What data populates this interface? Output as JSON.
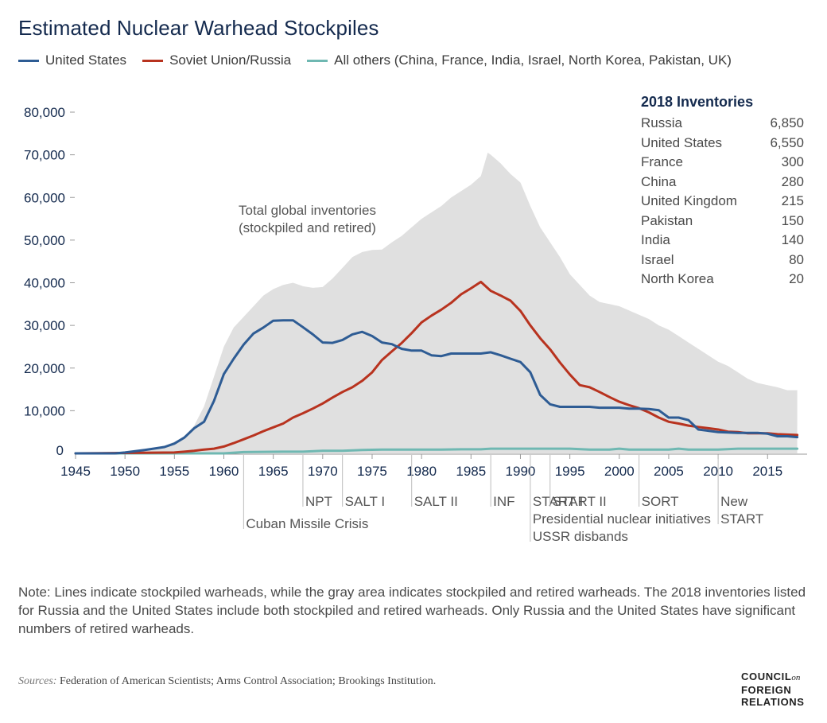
{
  "title": "Estimated Nuclear Warhead Stockpiles",
  "legend": [
    {
      "label": "United States",
      "color": "#2e5c94"
    },
    {
      "label": "Soviet Union/Russia",
      "color": "#b8331f"
    },
    {
      "label": "All others (China, France, India, Israel, North Korea, Pakistan, UK)",
      "color": "#6fb8b2"
    }
  ],
  "area_label_line1": "Total global inventories",
  "area_label_line2": "(stockpiled and retired)",
  "inventories": {
    "title": "2018 Inventories",
    "rows": [
      {
        "country": "Russia",
        "value": "6,850"
      },
      {
        "country": "United States",
        "value": "6,550"
      },
      {
        "country": "France",
        "value": "300"
      },
      {
        "country": "China",
        "value": "280"
      },
      {
        "country": "United Kingdom",
        "value": "215"
      },
      {
        "country": "Pakistan",
        "value": "150"
      },
      {
        "country": "India",
        "value": "140"
      },
      {
        "country": "Israel",
        "value": "80"
      },
      {
        "country": "North Korea",
        "value": "20"
      }
    ]
  },
  "note": "Note: Lines indicate stockpiled warheads, while the gray area indicates stockpiled and retired warheads. The 2018 inventories listed for Russia and the United States include both stockpiled and retired warheads. Only Russia and the United States have significant numbers of retired warheads.",
  "sources_label": "Sources:",
  "sources_text": "Federation of American Scientists; Arms Control Association; Brookings Institution.",
  "logo": {
    "line1": "COUNCIL",
    "on": "on",
    "line2": "FOREIGN",
    "line3": "RELATIONS"
  },
  "chart_data": {
    "type": "line",
    "title": "Estimated Nuclear Warhead Stockpiles",
    "xlim": [
      1945,
      2019
    ],
    "ylim": [
      0,
      80000
    ],
    "x_ticks": [
      1945,
      1950,
      1955,
      1960,
      1965,
      1970,
      1975,
      1980,
      1985,
      1990,
      1995,
      2000,
      2005,
      2010,
      2015
    ],
    "y_ticks": [
      0,
      10000,
      20000,
      30000,
      40000,
      50000,
      60000,
      70000,
      80000
    ],
    "y_tick_labels": [
      "0",
      "10,000",
      "20,000",
      "30,000",
      "40,000",
      "50,000",
      "60,000",
      "70,000",
      "80,000"
    ],
    "grid": false,
    "legend_position": "top",
    "area": {
      "name": "Total global inventories (stockpiled and retired)",
      "color": "#e0e0e0",
      "points": [
        [
          1945,
          0
        ],
        [
          1950,
          300
        ],
        [
          1952,
          900
        ],
        [
          1954,
          1800
        ],
        [
          1955,
          2700
        ],
        [
          1956,
          4000
        ],
        [
          1957,
          6500
        ],
        [
          1958,
          11000
        ],
        [
          1959,
          18000
        ],
        [
          1960,
          25000
        ],
        [
          1961,
          29500
        ],
        [
          1962,
          32000
        ],
        [
          1963,
          34500
        ],
        [
          1964,
          37000
        ],
        [
          1965,
          38500
        ],
        [
          1966,
          39500
        ],
        [
          1967,
          40000
        ],
        [
          1968,
          39200
        ],
        [
          1969,
          38800
        ],
        [
          1970,
          39000
        ],
        [
          1971,
          41000
        ],
        [
          1972,
          43500
        ],
        [
          1973,
          46000
        ],
        [
          1974,
          47200
        ],
        [
          1975,
          47700
        ],
        [
          1976,
          47800
        ],
        [
          1977,
          49500
        ],
        [
          1978,
          51000
        ],
        [
          1979,
          53000
        ],
        [
          1980,
          55000
        ],
        [
          1981,
          56500
        ],
        [
          1982,
          58000
        ],
        [
          1983,
          60000
        ],
        [
          1984,
          61500
        ],
        [
          1985,
          63000
        ],
        [
          1986,
          65000
        ],
        [
          1986.7,
          70500
        ],
        [
          1987,
          70000
        ],
        [
          1988,
          68000
        ],
        [
          1989,
          65500
        ],
        [
          1990,
          63500
        ],
        [
          1991,
          58000
        ],
        [
          1992,
          53000
        ],
        [
          1993,
          49500
        ],
        [
          1994,
          46000
        ],
        [
          1995,
          42000
        ],
        [
          1996,
          39500
        ],
        [
          1997,
          37000
        ],
        [
          1998,
          35500
        ],
        [
          1999,
          35000
        ],
        [
          2000,
          34500
        ],
        [
          2001,
          33500
        ],
        [
          2002,
          32500
        ],
        [
          2003,
          31500
        ],
        [
          2004,
          30000
        ],
        [
          2005,
          29000
        ],
        [
          2006,
          27500
        ],
        [
          2007,
          26000
        ],
        [
          2008,
          24500
        ],
        [
          2009,
          23000
        ],
        [
          2010,
          21500
        ],
        [
          2011,
          20500
        ],
        [
          2012,
          19000
        ],
        [
          2013,
          17500
        ],
        [
          2014,
          16500
        ],
        [
          2015,
          16000
        ],
        [
          2016,
          15500
        ],
        [
          2017,
          14800
        ],
        [
          2018,
          14800
        ]
      ]
    },
    "series": [
      {
        "name": "United States",
        "color": "#2e5c94",
        "points": [
          [
            1945,
            0
          ],
          [
            1949,
            0
          ],
          [
            1950,
            200
          ],
          [
            1952,
            800
          ],
          [
            1954,
            1500
          ],
          [
            1955,
            2300
          ],
          [
            1956,
            3700
          ],
          [
            1957,
            5900
          ],
          [
            1958,
            7400
          ],
          [
            1959,
            12300
          ],
          [
            1960,
            18600
          ],
          [
            1961,
            22200
          ],
          [
            1962,
            25500
          ],
          [
            1963,
            28100
          ],
          [
            1964,
            29500
          ],
          [
            1965,
            31100
          ],
          [
            1966,
            31200
          ],
          [
            1967,
            31200
          ],
          [
            1968,
            29600
          ],
          [
            1969,
            27900
          ],
          [
            1970,
            26000
          ],
          [
            1971,
            25900
          ],
          [
            1972,
            26600
          ],
          [
            1973,
            27900
          ],
          [
            1974,
            28500
          ],
          [
            1975,
            27500
          ],
          [
            1976,
            26000
          ],
          [
            1977,
            25600
          ],
          [
            1978,
            24500
          ],
          [
            1979,
            24100
          ],
          [
            1980,
            24100
          ],
          [
            1981,
            23000
          ],
          [
            1982,
            22800
          ],
          [
            1983,
            23400
          ],
          [
            1984,
            23400
          ],
          [
            1985,
            23400
          ],
          [
            1986,
            23400
          ],
          [
            1987,
            23700
          ],
          [
            1988,
            23000
          ],
          [
            1989,
            22200
          ],
          [
            1990,
            21400
          ],
          [
            1991,
            19000
          ],
          [
            1992,
            13700
          ],
          [
            1993,
            11500
          ],
          [
            1994,
            10900
          ],
          [
            1995,
            10900
          ],
          [
            1996,
            10900
          ],
          [
            1997,
            10900
          ],
          [
            1998,
            10700
          ],
          [
            1999,
            10700
          ],
          [
            2000,
            10700
          ],
          [
            2001,
            10500
          ],
          [
            2002,
            10500
          ],
          [
            2003,
            10400
          ],
          [
            2004,
            10100
          ],
          [
            2005,
            8400
          ],
          [
            2006,
            8400
          ],
          [
            2007,
            7800
          ],
          [
            2008,
            5600
          ],
          [
            2009,
            5300
          ],
          [
            2010,
            5000
          ],
          [
            2011,
            4900
          ],
          [
            2012,
            4800
          ],
          [
            2013,
            4800
          ],
          [
            2014,
            4800
          ],
          [
            2015,
            4600
          ],
          [
            2016,
            4000
          ],
          [
            2017,
            4000
          ],
          [
            2018,
            3800
          ]
        ]
      },
      {
        "name": "Soviet Union/Russia",
        "color": "#b8331f",
        "points": [
          [
            1945,
            0
          ],
          [
            1955,
            200
          ],
          [
            1956,
            400
          ],
          [
            1957,
            600
          ],
          [
            1958,
            900
          ],
          [
            1959,
            1100
          ],
          [
            1960,
            1600
          ],
          [
            1961,
            2400
          ],
          [
            1962,
            3300
          ],
          [
            1963,
            4200
          ],
          [
            1964,
            5200
          ],
          [
            1965,
            6100
          ],
          [
            1966,
            7000
          ],
          [
            1967,
            8400
          ],
          [
            1968,
            9400
          ],
          [
            1969,
            10500
          ],
          [
            1970,
            11700
          ],
          [
            1971,
            13100
          ],
          [
            1972,
            14400
          ],
          [
            1973,
            15500
          ],
          [
            1974,
            17000
          ],
          [
            1975,
            19000
          ],
          [
            1976,
            21900
          ],
          [
            1977,
            23900
          ],
          [
            1978,
            25900
          ],
          [
            1979,
            28200
          ],
          [
            1980,
            30700
          ],
          [
            1981,
            32300
          ],
          [
            1982,
            33700
          ],
          [
            1983,
            35300
          ],
          [
            1984,
            37300
          ],
          [
            1985,
            38700
          ],
          [
            1986,
            40200
          ],
          [
            1987,
            38100
          ],
          [
            1988,
            37000
          ],
          [
            1989,
            35800
          ],
          [
            1990,
            33400
          ],
          [
            1991,
            30000
          ],
          [
            1992,
            27000
          ],
          [
            1993,
            24400
          ],
          [
            1994,
            21300
          ],
          [
            1995,
            18500
          ],
          [
            1996,
            16000
          ],
          [
            1997,
            15500
          ],
          [
            1998,
            14400
          ],
          [
            1999,
            13200
          ],
          [
            2000,
            12100
          ],
          [
            2001,
            11300
          ],
          [
            2002,
            10600
          ],
          [
            2003,
            9600
          ],
          [
            2004,
            8400
          ],
          [
            2005,
            7400
          ],
          [
            2006,
            7000
          ],
          [
            2007,
            6500
          ],
          [
            2008,
            6200
          ],
          [
            2009,
            5900
          ],
          [
            2010,
            5600
          ],
          [
            2011,
            5100
          ],
          [
            2012,
            5000
          ],
          [
            2013,
            4700
          ],
          [
            2014,
            4700
          ],
          [
            2015,
            4700
          ],
          [
            2016,
            4500
          ],
          [
            2017,
            4400
          ],
          [
            2018,
            4300
          ]
        ]
      },
      {
        "name": "All others (China, France, India, Israel, North Korea, Pakistan, UK)",
        "color": "#6fb8b2",
        "points": [
          [
            1945,
            0
          ],
          [
            1960,
            0
          ],
          [
            1962,
            300
          ],
          [
            1964,
            350
          ],
          [
            1966,
            400
          ],
          [
            1968,
            400
          ],
          [
            1970,
            600
          ],
          [
            1972,
            600
          ],
          [
            1974,
            800
          ],
          [
            1976,
            900
          ],
          [
            1978,
            900
          ],
          [
            1980,
            900
          ],
          [
            1982,
            900
          ],
          [
            1984,
            950
          ],
          [
            1986,
            950
          ],
          [
            1987,
            1100
          ],
          [
            1990,
            1100
          ],
          [
            1993,
            1100
          ],
          [
            1995,
            1100
          ],
          [
            1997,
            900
          ],
          [
            1999,
            900
          ],
          [
            2000,
            1100
          ],
          [
            2001,
            900
          ],
          [
            2005,
            900
          ],
          [
            2006,
            1100
          ],
          [
            2007,
            900
          ],
          [
            2010,
            900
          ],
          [
            2012,
            1100
          ],
          [
            2018,
            1100
          ]
        ]
      }
    ],
    "annotations": [
      {
        "year": 1962,
        "lines": [
          "Cuban Missile Crisis"
        ]
      },
      {
        "year": 1968,
        "lines": [
          "NPT"
        ]
      },
      {
        "year": 1972,
        "lines": [
          "SALT I"
        ]
      },
      {
        "year": 1979,
        "lines": [
          "SALT II"
        ]
      },
      {
        "year": 1987,
        "lines": [
          "INF"
        ]
      },
      {
        "year": 1991,
        "lines": [
          "START I",
          "Presidential nuclear initiatives",
          "USSR disbands"
        ]
      },
      {
        "year": 1993,
        "lines": [
          "START II"
        ]
      },
      {
        "year": 2002,
        "lines": [
          "SORT"
        ]
      },
      {
        "year": 2010,
        "lines": [
          "New",
          "START"
        ]
      }
    ]
  }
}
